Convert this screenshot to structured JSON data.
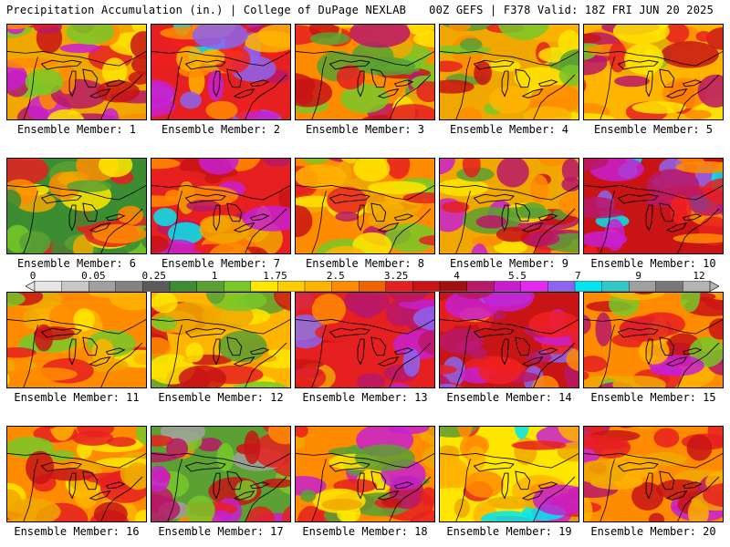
{
  "header": {
    "left": "Precipitation Accumulation (in.) | College of DuPage NEXLAB",
    "right": "00Z GEFS | F378 Valid: 18Z FRI JUN 20 2025"
  },
  "members": [
    {
      "label": "Ensemble Member: 1",
      "palette": [
        "#f0a800",
        "#e62020",
        "#b81868",
        "#c81ed0",
        "#ff8c00",
        "#ffe600",
        "#78c828",
        "#c81414"
      ]
    },
    {
      "label": "Ensemble Member: 2",
      "palette": [
        "#e62020",
        "#c81ed0",
        "#ff8c00",
        "#8c64f0",
        "#00e6f0",
        "#b81868",
        "#ffb400",
        "#f02020"
      ]
    },
    {
      "label": "Ensemble Member: 3",
      "palette": [
        "#ff8c00",
        "#e62020",
        "#5aa032",
        "#78c828",
        "#ffe600",
        "#c81414",
        "#f0a800",
        "#b81868"
      ]
    },
    {
      "label": "Ensemble Member: 4",
      "palette": [
        "#f0a800",
        "#78c828",
        "#5aa032",
        "#ffe600",
        "#e62020",
        "#ff8c00",
        "#c81414",
        "#ffb400"
      ]
    },
    {
      "label": "Ensemble Member: 5",
      "palette": [
        "#ffb400",
        "#e62020",
        "#ff8c00",
        "#78c828",
        "#ffe600",
        "#c81414",
        "#f0a800",
        "#b81868"
      ]
    },
    {
      "label": "Ensemble Member: 6",
      "palette": [
        "#3c8c32",
        "#5aa032",
        "#ffe600",
        "#ff8c00",
        "#e62020",
        "#78c828",
        "#f0a800",
        "#3c8c32"
      ]
    },
    {
      "label": "Ensemble Member: 7",
      "palette": [
        "#e62020",
        "#c81414",
        "#ff8c00",
        "#c81ed0",
        "#00e6f0",
        "#b81868",
        "#f0a800",
        "#e62020"
      ]
    },
    {
      "label": "Ensemble Member: 8",
      "palette": [
        "#ff8c00",
        "#e62020",
        "#ffe600",
        "#78c828",
        "#c81414",
        "#f0a800",
        "#b81868",
        "#ffb400"
      ]
    },
    {
      "label": "Ensemble Member: 9",
      "palette": [
        "#f0a800",
        "#c81ed0",
        "#e62020",
        "#5aa032",
        "#ff8c00",
        "#ffe600",
        "#b81868",
        "#c81414"
      ]
    },
    {
      "label": "Ensemble Member: 10",
      "palette": [
        "#c81414",
        "#e62020",
        "#b81868",
        "#c81ed0",
        "#8c64f0",
        "#00e6f0",
        "#ff8c00",
        "#f02020"
      ]
    },
    {
      "label": "Ensemble Member: 11",
      "palette": [
        "#ff8c00",
        "#ffb400",
        "#e62020",
        "#ffe600",
        "#f0a800",
        "#c81414",
        "#78c828",
        "#ff8c00"
      ]
    },
    {
      "label": "Ensemble Member: 12",
      "palette": [
        "#ffb400",
        "#ff8c00",
        "#78c828",
        "#ffe600",
        "#e62020",
        "#5aa032",
        "#f0a800",
        "#c81414"
      ]
    },
    {
      "label": "Ensemble Member: 13",
      "palette": [
        "#e62020",
        "#c81414",
        "#ff8c00",
        "#c81ed0",
        "#8c64f0",
        "#b81868",
        "#f0a800",
        "#e62020"
      ]
    },
    {
      "label": "Ensemble Member: 14",
      "palette": [
        "#c81414",
        "#e62020",
        "#b81868",
        "#c81ed0",
        "#8c64f0",
        "#ff8c00",
        "#f02020",
        "#b81868"
      ]
    },
    {
      "label": "Ensemble Member: 15",
      "palette": [
        "#ff8c00",
        "#e62020",
        "#c81414",
        "#b81868",
        "#f0a800",
        "#78c828",
        "#ffb400",
        "#c81ed0"
      ]
    },
    {
      "label": "Ensemble Member: 16",
      "palette": [
        "#ff8c00",
        "#e62020",
        "#ffb400",
        "#c81414",
        "#ffe600",
        "#f0a800",
        "#78c828",
        "#e62020"
      ]
    },
    {
      "label": "Ensemble Member: 17",
      "palette": [
        "#5aa032",
        "#e62020",
        "#c81414",
        "#b81868",
        "#a0a0a0",
        "#ff8c00",
        "#c81ed0",
        "#78c828"
      ]
    },
    {
      "label": "Ensemble Member: 18",
      "palette": [
        "#ff8c00",
        "#e62020",
        "#f0a800",
        "#c81ed0",
        "#5aa032",
        "#ffe600",
        "#c81414",
        "#b81868"
      ]
    },
    {
      "label": "Ensemble Member: 19",
      "palette": [
        "#ffe600",
        "#ffb400",
        "#f0a800",
        "#ff8c00",
        "#e62020",
        "#5aa032",
        "#00e6f0",
        "#c81ed0"
      ]
    },
    {
      "label": "Ensemble Member: 20",
      "palette": [
        "#ff8c00",
        "#e62020",
        "#c81414",
        "#ffb400",
        "#b81868",
        "#f0a800",
        "#c81ed0",
        "#e62020"
      ]
    }
  ],
  "colorbar": {
    "ticks": [
      "0",
      "0.05",
      "0.25",
      "1",
      "1.75",
      "2.5",
      "3.25",
      "4",
      "5.5",
      "7",
      "9",
      "12"
    ],
    "colors": [
      "#e6e6e6",
      "#c8c8c8",
      "#a0a0a0",
      "#828282",
      "#5a5a5a",
      "#3c8c32",
      "#5aa032",
      "#78c828",
      "#ffe600",
      "#ffcc00",
      "#ffb400",
      "#ff8c00",
      "#f06400",
      "#e62020",
      "#c81414",
      "#a01010",
      "#b81868",
      "#c81ed0",
      "#e628f0",
      "#8c64f0",
      "#00e6f0",
      "#32c8c8",
      "#a0a0a0",
      "#787878",
      "#b4b4b4"
    ]
  }
}
